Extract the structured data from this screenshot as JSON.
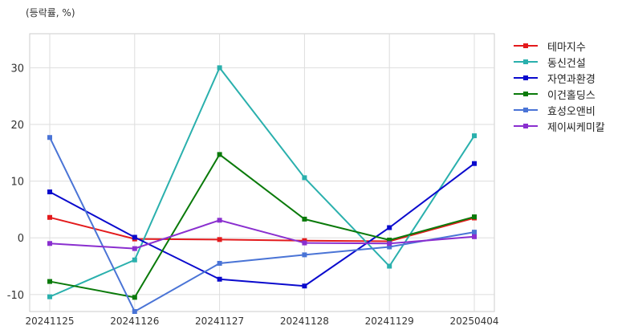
{
  "chart_data": {
    "type": "line",
    "unit_label": "(등락률, %)",
    "categories": [
      "20241125",
      "20241126",
      "20241127",
      "20241128",
      "20241129",
      "20250404"
    ],
    "ylim": [
      -13,
      36
    ],
    "yticks": [
      -10,
      0,
      10,
      20,
      30
    ],
    "grid": true,
    "legend_position": "right",
    "series": [
      {
        "name": "테마지수",
        "color": "#e31a1c",
        "values": [
          3.6,
          -0.2,
          -0.3,
          -0.5,
          -0.6,
          3.5
        ]
      },
      {
        "name": "동신건설",
        "color": "#2ab0ad",
        "values": [
          -10.4,
          -3.9,
          30.0,
          10.6,
          -5.0,
          18.0
        ]
      },
      {
        "name": "자연과환경",
        "color": "#0a0acd",
        "values": [
          8.1,
          0.1,
          -7.3,
          -8.5,
          1.8,
          13.1
        ]
      },
      {
        "name": "이건홀딩스",
        "color": "#0a7a0a",
        "values": [
          -7.7,
          -10.5,
          14.7,
          3.3,
          -0.4,
          3.7
        ]
      },
      {
        "name": "효성오앤비",
        "color": "#4a74d6",
        "values": [
          17.7,
          -13.0,
          -4.5,
          -3.0,
          -1.6,
          1.0
        ]
      },
      {
        "name": "제이씨케미칼",
        "color": "#8a2fcf",
        "values": [
          -1.0,
          -1.9,
          3.1,
          -0.9,
          -1.0,
          0.2
        ]
      }
    ]
  }
}
